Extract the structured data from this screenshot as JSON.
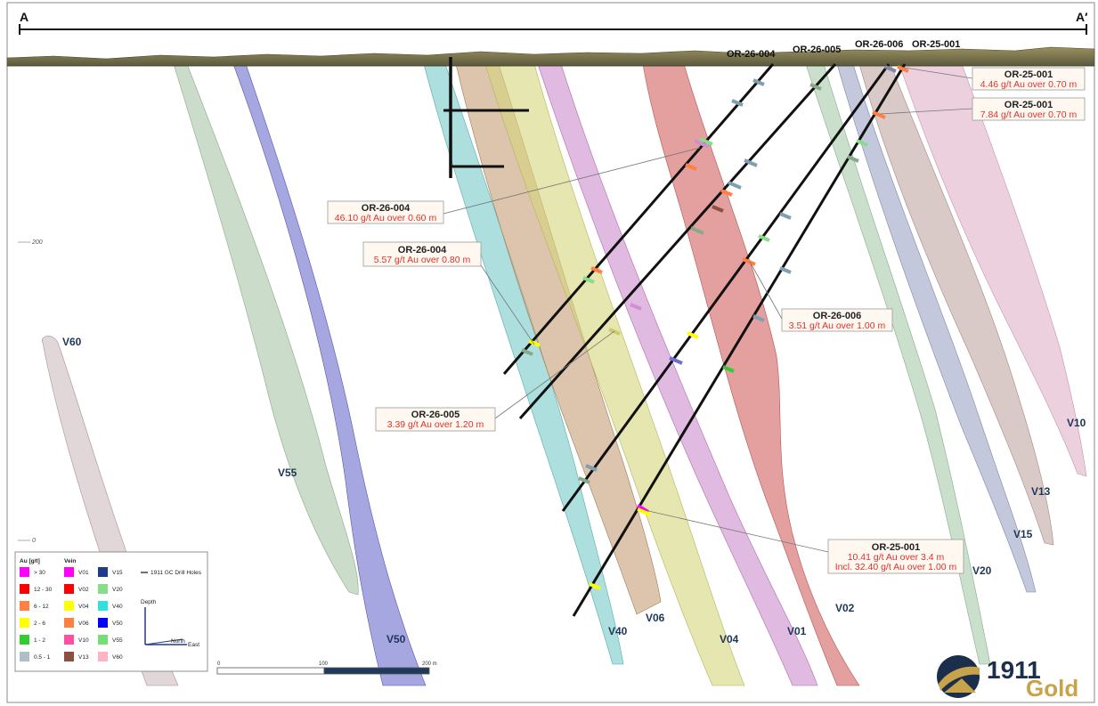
{
  "section": {
    "left_label": "A",
    "right_label": "A′"
  },
  "elevations": [
    "200",
    "0"
  ],
  "drill_holes": [
    "OR-26-004",
    "OR-26-005",
    "OR-26-006",
    "OR-25-001"
  ],
  "veins": [
    {
      "id": "V60",
      "color": "#c9b4b8"
    },
    {
      "id": "V55",
      "color": "#a9c7a6"
    },
    {
      "id": "V50",
      "color": "#6f6fcf"
    },
    {
      "id": "V40",
      "color": "#78c9c9"
    },
    {
      "id": "V06",
      "color": "#c7a07a"
    },
    {
      "id": "V04",
      "color": "#d6d67c"
    },
    {
      "id": "V01",
      "color": "#cf8fd0"
    },
    {
      "id": "V02",
      "color": "#d97676"
    },
    {
      "id": "V20",
      "color": "#a8ccaa"
    },
    {
      "id": "V15",
      "color": "#9fa6c6"
    },
    {
      "id": "V13",
      "color": "#c2aaa5"
    },
    {
      "id": "V10",
      "color": "#e3b7cd"
    }
  ],
  "callouts": [
    {
      "hole": "OR-25-001",
      "lines": [
        "4.46 g/t Au over 0.70 m"
      ]
    },
    {
      "hole": "OR-25-001",
      "lines": [
        "7.84 g/t Au over 0.70 m"
      ]
    },
    {
      "hole": "OR-26-004",
      "lines": [
        "46.10 g/t Au over 0.60 m"
      ]
    },
    {
      "hole": "OR-26-004",
      "lines": [
        "5.57 g/t Au over 0.80 m"
      ]
    },
    {
      "hole": "OR-26-006",
      "lines": [
        "3.51 g/t Au over 1.00 m"
      ]
    },
    {
      "hole": "OR-26-005",
      "lines": [
        "3.39 g/t Au over 1.20 m"
      ]
    },
    {
      "hole": "OR-25-001",
      "lines": [
        "10.41 g/t Au over 3.4 m",
        "Incl. 32.40 g/t Au over 1.00 m"
      ]
    }
  ],
  "legend": {
    "au_header": "Au [g/t]",
    "vein_header": "Vein",
    "drill_label": "1911 GC Drill Holes",
    "grades": [
      {
        "label": "> 30",
        "color": "#ff00ff"
      },
      {
        "label": "12 - 30",
        "color": "#ff0000"
      },
      {
        "label": "6 - 12",
        "color": "#ff8040"
      },
      {
        "label": "2 - 6",
        "color": "#ffff00"
      },
      {
        "label": "1 - 2",
        "color": "#33cc33"
      },
      {
        "label": "0.5 - 1",
        "color": "#b0bec8"
      }
    ],
    "veins_col1": [
      {
        "label": "V01",
        "color": "#ff00ff"
      },
      {
        "label": "V02",
        "color": "#ff0000"
      },
      {
        "label": "V04",
        "color": "#ffff00"
      },
      {
        "label": "V06",
        "color": "#ff8040"
      },
      {
        "label": "V10",
        "color": "#ff4fa0"
      },
      {
        "label": "V13",
        "color": "#8b5040"
      }
    ],
    "veins_col2": [
      {
        "label": "V15",
        "color": "#1f3b8c"
      },
      {
        "label": "V20",
        "color": "#88dd88"
      },
      {
        "label": "V40",
        "color": "#33e0e0"
      },
      {
        "label": "V50",
        "color": "#0000ff"
      },
      {
        "label": "V55",
        "color": "#77dd77"
      },
      {
        "label": "V60",
        "color": "#ffb3c6"
      }
    ],
    "axis_depth": "Depth",
    "axis_north": "North",
    "axis_east": "East"
  },
  "scale": {
    "labels": [
      "0",
      "100",
      "200 m"
    ]
  },
  "logo": {
    "number": "1911",
    "word": "Gold"
  }
}
